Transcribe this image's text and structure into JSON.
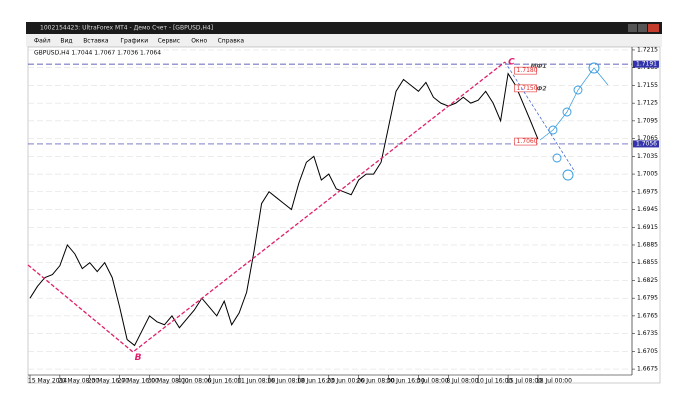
{
  "window": {
    "title": "1002154423: UltraForex MT4 - Демо Счет - [GBPUSD,H4]"
  },
  "menu": [
    "Файл",
    "Вид",
    "Вставка",
    "Графики",
    "Сервис",
    "Окно",
    "Справка"
  ],
  "chart_data": {
    "type": "line",
    "header": "GBPUSD,H4  1.7044 1.7067 1.7036 1.7064",
    "categories": [
      "15 May 2014",
      null,
      null,
      null,
      "20 May 08:00",
      null,
      null,
      null,
      "23 May 16:00",
      null,
      null,
      null,
      "27 May 16:00",
      null,
      null,
      null,
      "30 May 08:00",
      null,
      null,
      null,
      "4 Jun 08:00",
      null,
      null,
      null,
      "6 Jun 16:00",
      null,
      null,
      null,
      "11 Jun 08:00",
      null,
      null,
      null,
      "16 Jun 08:00",
      null,
      null,
      null,
      "18 Jun 16:00",
      null,
      null,
      null,
      "23 Jun 00:00",
      null,
      null,
      null,
      "26 Jun 08:00",
      null,
      null,
      null,
      "30 Jun 16:00",
      null,
      null,
      null,
      "3 Jul 08:00",
      null,
      null,
      null,
      "8 Jul 08:00",
      null,
      null,
      null,
      "10 Jul 16:00",
      null,
      null,
      null,
      "15 Jul 08:00",
      null,
      null,
      null,
      "18 Jul 00:00"
    ],
    "values": [
      1.6795,
      1.6815,
      1.683,
      1.6835,
      1.685,
      1.6885,
      1.687,
      1.6845,
      1.6855,
      1.684,
      1.6855,
      1.683,
      1.678,
      1.6725,
      1.6715,
      1.674,
      1.6765,
      1.6755,
      1.675,
      1.6765,
      1.6745,
      1.676,
      1.6775,
      1.6795,
      1.678,
      1.6765,
      1.679,
      1.675,
      1.677,
      1.6805,
      1.6875,
      1.6955,
      1.6975,
      1.6965,
      1.6955,
      1.6945,
      1.699,
      1.7025,
      1.7035,
      1.6995,
      1.7005,
      1.698,
      1.6975,
      1.697,
      1.6995,
      1.7005,
      1.7005,
      1.7025,
      1.7085,
      1.7145,
      1.7165,
      1.7155,
      1.7145,
      1.716,
      1.7135,
      1.7125,
      1.712,
      1.7125,
      1.7135,
      1.7125,
      1.713,
      1.7145,
      1.7125,
      1.7095,
      1.7175,
      1.7155,
      1.7125,
      1.7095,
      1.7064
    ],
    "color": "#000000",
    "ylim": [
      1.6665,
      1.722
    ],
    "yticks": [
      1.6675,
      1.6705,
      1.6735,
      1.6765,
      1.6795,
      1.6825,
      1.6855,
      1.6885,
      1.6915,
      1.6945,
      1.6975,
      1.7005,
      1.7035,
      1.7065,
      1.7095,
      1.7125,
      1.7155,
      1.7185,
      1.7215
    ],
    "levels": [
      {
        "value": 1.7191,
        "color": "#3333aa"
      },
      {
        "value": 1.7056,
        "color": "#3333aa"
      }
    ],
    "annotations": [
      {
        "text": "C",
        "index": 64,
        "value": 1.7195,
        "color": "#e0206a"
      },
      {
        "text": "B",
        "index": 14,
        "value": 1.6695,
        "color": "#e0206a"
      },
      {
        "text": "МФ1",
        "index": 67,
        "value": 1.7187,
        "color": "#555555"
      },
      {
        "text": "МФ2",
        "index": 67,
        "value": 1.7149,
        "color": "#555555"
      },
      {
        "text": "1.7180",
        "index": 65,
        "value": 1.718,
        "color": "#e03030"
      },
      {
        "text": "1.7150",
        "index": 65,
        "value": 1.715,
        "color": "#e03030"
      },
      {
        "text": "1.7060",
        "index": 65,
        "value": 1.706,
        "color": "#e03030"
      }
    ]
  }
}
